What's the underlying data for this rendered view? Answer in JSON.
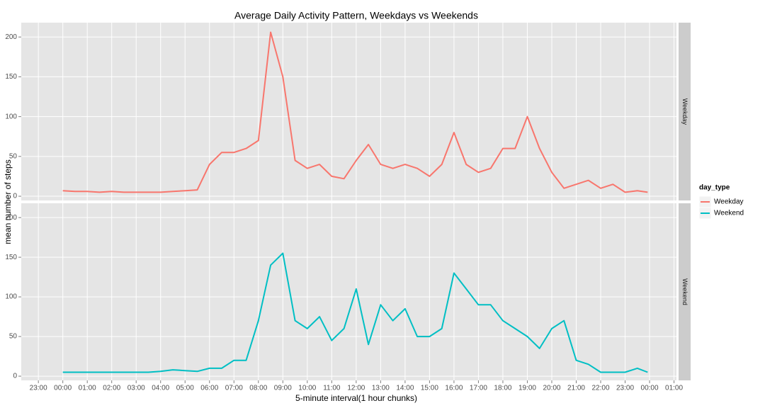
{
  "chart_data": {
    "type": "line",
    "title": "Average Daily Activity Pattern, Weekdays vs Weekends",
    "x_label": "5-minute interval(1 hour chunks)",
    "y_label": "mean number of steps",
    "legend_title": "day_type",
    "legend_position": "right",
    "grid": true,
    "x": [
      0,
      0.5,
      1,
      1.5,
      2,
      2.5,
      3,
      3.5,
      4,
      4.5,
      5,
      5.5,
      6,
      6.5,
      7,
      7.5,
      8,
      8.5,
      9,
      9.5,
      10,
      10.5,
      11,
      11.5,
      12,
      12.5,
      13,
      13.5,
      14,
      14.5,
      15,
      15.5,
      16,
      16.5,
      17,
      17.5,
      18,
      18.5,
      19,
      19.5,
      20,
      20.5,
      21,
      21.5,
      22,
      22.5,
      23,
      23.5,
      23.92
    ],
    "series": [
      {
        "name": "Weekday",
        "color": "#F8766D",
        "values": [
          7,
          6,
          6,
          5,
          6,
          5,
          5,
          5,
          5,
          6,
          7,
          8,
          40,
          55,
          55,
          60,
          70,
          206,
          150,
          45,
          35,
          40,
          25,
          22,
          45,
          65,
          40,
          35,
          40,
          35,
          25,
          40,
          80,
          40,
          30,
          35,
          60,
          60,
          100,
          60,
          30,
          10,
          15,
          20,
          10,
          15,
          5,
          7,
          5
        ]
      },
      {
        "name": "Weekend",
        "color": "#00BFC4",
        "values": [
          5,
          5,
          5,
          5,
          5,
          5,
          5,
          5,
          6,
          8,
          7,
          6,
          10,
          10,
          20,
          20,
          70,
          140,
          155,
          70,
          60,
          75,
          45,
          60,
          110,
          40,
          90,
          70,
          85,
          50,
          50,
          60,
          130,
          110,
          90,
          90,
          70,
          60,
          50,
          35,
          60,
          70,
          20,
          15,
          5,
          5,
          5,
          10,
          5
        ]
      }
    ],
    "xlim": [
      -1.7,
      25.1
    ],
    "xticks": [
      {
        "value": -1,
        "label": "23:00"
      },
      {
        "value": 0,
        "label": "00:00"
      },
      {
        "value": 1,
        "label": "01:00"
      },
      {
        "value": 2,
        "label": "02:00"
      },
      {
        "value": 3,
        "label": "03:00"
      },
      {
        "value": 4,
        "label": "04:00"
      },
      {
        "value": 5,
        "label": "05:00"
      },
      {
        "value": 6,
        "label": "06:00"
      },
      {
        "value": 7,
        "label": "07:00"
      },
      {
        "value": 8,
        "label": "08:00"
      },
      {
        "value": 9,
        "label": "09:00"
      },
      {
        "value": 10,
        "label": "10:00"
      },
      {
        "value": 11,
        "label": "11:00"
      },
      {
        "value": 12,
        "label": "12:00"
      },
      {
        "value": 13,
        "label": "13:00"
      },
      {
        "value": 14,
        "label": "14:00"
      },
      {
        "value": 15,
        "label": "15:00"
      },
      {
        "value": 16,
        "label": "16:00"
      },
      {
        "value": 17,
        "label": "17:00"
      },
      {
        "value": 18,
        "label": "18:00"
      },
      {
        "value": 19,
        "label": "19:00"
      },
      {
        "value": 20,
        "label": "20:00"
      },
      {
        "value": 21,
        "label": "21:00"
      },
      {
        "value": 22,
        "label": "22:00"
      },
      {
        "value": 23,
        "label": "23:00"
      },
      {
        "value": 24,
        "label": "00:00"
      },
      {
        "value": 25,
        "label": "01:00"
      }
    ],
    "ylim": [
      -5.3,
      218
    ],
    "yticks": [
      0,
      50,
      100,
      150,
      200
    ]
  }
}
